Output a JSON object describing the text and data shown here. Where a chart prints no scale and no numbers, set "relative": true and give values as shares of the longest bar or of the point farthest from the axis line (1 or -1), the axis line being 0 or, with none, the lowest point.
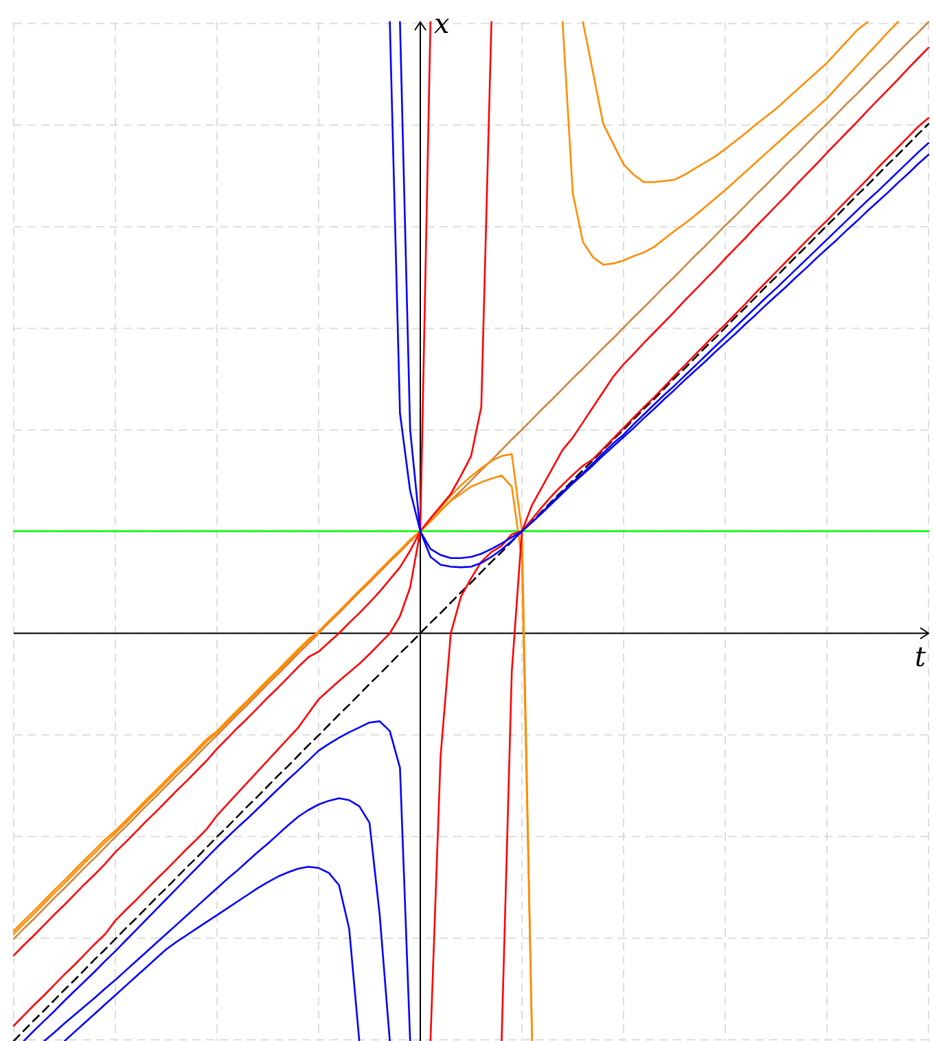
{
  "chart_data": {
    "type": "line",
    "relative": true,
    "xlabel": "t",
    "ylabel": "x",
    "grid": true,
    "categories": [
      null,
      null,
      null,
      null,
      null,
      null,
      null,
      null,
      null,
      null,
      null,
      null,
      null,
      null,
      null,
      null,
      null,
      null,
      null,
      null,
      null,
      null,
      null,
      null,
      null,
      null,
      null,
      null,
      null,
      null,
      null,
      null,
      null,
      null,
      null,
      null,
      null,
      null,
      null,
      null,
      null,
      null,
      null,
      null,
      null,
      null,
      null,
      null,
      null,
      null,
      null,
      null,
      null,
      null,
      null,
      null,
      null,
      null,
      null,
      null,
      null,
      null,
      null,
      null,
      null,
      null,
      null,
      null,
      null,
      null,
      null,
      null,
      null,
      null,
      null,
      null,
      null,
      null,
      null,
      null,
      null,
      null,
      null,
      null,
      null,
      null,
      null,
      null,
      null,
      null,
      null
    ],
    "series": [
      {
        "color": "#00ff00",
        "values": [
          0.167,
          0.167,
          0.167,
          0.167,
          0.167,
          0.167,
          0.167,
          0.167,
          0.167,
          0.167,
          0.167,
          0.167,
          0.167,
          0.167,
          0.167,
          0.167,
          0.167,
          0.167,
          0.167,
          0.167,
          0.167,
          0.167,
          0.167,
          0.167,
          0.167,
          0.167,
          0.167,
          0.167,
          0.167,
          0.167,
          0.167,
          0.167,
          0.167,
          0.167,
          0.167,
          0.167,
          0.167,
          0.167,
          0.167,
          0.167,
          0.167,
          0.167,
          0.167,
          0.167,
          0.167,
          0.167,
          0.167,
          0.167,
          0.167,
          0.167,
          0.167,
          0.167,
          0.167,
          0.167,
          0.167,
          0.167,
          0.167,
          0.167,
          0.167,
          0.167,
          0.167,
          0.167,
          0.167,
          0.167,
          0.167,
          0.167,
          0.167,
          0.167,
          0.167,
          0.167,
          0.167,
          0.167,
          0.167,
          0.167,
          0.167,
          0.167,
          0.167,
          0.167,
          0.167,
          0.167,
          0.167,
          0.167,
          0.167,
          0.167,
          0.167,
          0.167,
          0.167,
          0.167,
          0.167,
          0.167,
          0.167
        ]
      },
      {
        "color": "#000000",
        "line_style": "dashed",
        "values": [
          -0.667,
          -0.65,
          -0.633,
          -0.617,
          -0.6,
          -0.583,
          -0.567,
          -0.55,
          -0.533,
          -0.517,
          -0.5,
          -0.483,
          -0.467,
          -0.45,
          -0.433,
          -0.417,
          -0.4,
          -0.383,
          -0.367,
          -0.35,
          -0.333,
          -0.317,
          -0.3,
          -0.283,
          -0.267,
          -0.25,
          -0.233,
          -0.217,
          -0.2,
          -0.183,
          -0.167,
          -0.15,
          -0.133,
          -0.117,
          -0.1,
          -0.083,
          -0.067,
          -0.05,
          -0.033,
          -0.017,
          0,
          0.017,
          0.033,
          0.05,
          0.067,
          0.083,
          0.1,
          0.117,
          0.133,
          0.15,
          0.167,
          0.183,
          0.2,
          0.217,
          0.233,
          0.25,
          0.267,
          0.283,
          0.3,
          0.317,
          0.333,
          0.35,
          0.367,
          0.383,
          0.4,
          0.417,
          0.433,
          0.45,
          0.467,
          0.483,
          0.5,
          0.517,
          0.533,
          0.55,
          0.567,
          0.583,
          0.6,
          0.617,
          0.633,
          0.65,
          0.667,
          0.683,
          0.7,
          0.717,
          0.733,
          0.75,
          0.767,
          0.783,
          0.8,
          0.817,
          0.833
        ]
      },
      {
        "color": "#cd853f",
        "values": [
          -0.5,
          -0.483,
          -0.467,
          -0.45,
          -0.433,
          -0.417,
          -0.4,
          -0.383,
          -0.367,
          -0.35,
          -0.333,
          -0.317,
          -0.3,
          -0.283,
          -0.267,
          -0.25,
          -0.233,
          -0.217,
          -0.2,
          -0.183,
          -0.167,
          -0.15,
          -0.133,
          -0.117,
          -0.1,
          -0.083,
          -0.067,
          -0.05,
          -0.033,
          -0.017,
          0,
          0.017,
          0.033,
          0.05,
          0.067,
          0.083,
          0.1,
          0.117,
          0.133,
          0.15,
          0.167,
          0.183,
          0.2,
          0.217,
          0.233,
          0.25,
          0.267,
          0.283,
          0.3,
          0.317,
          0.333,
          0.35,
          0.367,
          0.383,
          0.4,
          0.417,
          0.433,
          0.45,
          0.467,
          0.483,
          0.5,
          0.517,
          0.533,
          0.55,
          0.567,
          0.583,
          0.6,
          0.617,
          0.633,
          0.65,
          0.667,
          0.683,
          0.7,
          0.717,
          0.733,
          0.75,
          0.767,
          0.783,
          0.8,
          0.817,
          0.833,
          0.85,
          0.867,
          0.883,
          0.9,
          0.917,
          0.933,
          0.95,
          0.967,
          0.983,
          1
        ]
      },
      {
        "color": "#ff8c00",
        "values": [
          -0.487,
          -0.47,
          -0.454,
          -0.437,
          -0.42,
          -0.404,
          -0.387,
          -0.37,
          -0.354,
          -0.337,
          -0.323,
          -0.307,
          -0.29,
          -0.273,
          -0.257,
          -0.24,
          -0.223,
          -0.207,
          -0.19,
          -0.173,
          -0.16,
          -0.143,
          -0.126,
          -0.11,
          -0.093,
          -0.076,
          -0.06,
          -0.043,
          -0.026,
          -0.01,
          0.003,
          0.02,
          0.036,
          0.053,
          0.07,
          0.086,
          0.103,
          0.12,
          0.136,
          0.153,
          0.167,
          0.187,
          0.205,
          0.225,
          0.242,
          0.257,
          0.27,
          0.282,
          0.29,
          0.293,
          0.167,
          -0.667,
          null,
          null,
          null,
          null,
          null,
          null,
          null,
          null,
          null,
          null,
          null,
          null,
          null,
          null,
          null,
          null,
          null,
          null,
          null,
          null,
          null,
          null,
          null,
          null,
          null,
          null,
          null,
          null,
          null,
          null,
          null,
          null,
          null,
          null,
          null,
          null,
          null,
          null,
          null
        ]
      },
      {
        "color": "#ff8c00",
        "values": [
          -0.492,
          -0.475,
          -0.459,
          -0.442,
          -0.425,
          -0.409,
          -0.392,
          -0.375,
          -0.359,
          -0.342,
          -0.327,
          -0.311,
          -0.294,
          -0.277,
          -0.261,
          -0.244,
          -0.227,
          -0.211,
          -0.194,
          -0.177,
          -0.163,
          -0.146,
          -0.129,
          -0.113,
          -0.096,
          -0.079,
          -0.063,
          -0.046,
          -0.029,
          -0.013,
          0.002,
          0.019,
          0.035,
          0.052,
          0.069,
          0.085,
          0.102,
          0.119,
          0.135,
          0.152,
          0.167,
          0.183,
          0.2,
          0.217,
          0.228,
          0.24,
          0.247,
          0.253,
          0.258,
          0.24,
          0.12,
          -0.667,
          null,
          null,
          null,
          null,
          null,
          null,
          null,
          null,
          null,
          null,
          null,
          null,
          null,
          null,
          null,
          null,
          null,
          null,
          null,
          null,
          null,
          null,
          null,
          null,
          null,
          null,
          null,
          null,
          null,
          null,
          null,
          null,
          null,
          null,
          null,
          null,
          null,
          null,
          null
        ]
      },
      {
        "color": "#ff8c00",
        "values": [
          null,
          null,
          null,
          null,
          null,
          null,
          null,
          null,
          null,
          null,
          null,
          null,
          null,
          null,
          null,
          null,
          null,
          null,
          null,
          null,
          null,
          null,
          null,
          null,
          null,
          null,
          null,
          null,
          null,
          null,
          null,
          null,
          null,
          null,
          null,
          null,
          null,
          null,
          null,
          null,
          null,
          null,
          null,
          null,
          null,
          null,
          null,
          null,
          null,
          null,
          null,
          null,
          null,
          null,
          null,
          null,
          1,
          0.917,
          0.833,
          0.8,
          0.767,
          0.75,
          0.738,
          0.738,
          0.74,
          0.742,
          0.75,
          0.76,
          0.77,
          0.78,
          0.792,
          0.805,
          0.818,
          0.832,
          0.845,
          0.858,
          0.873,
          0.888,
          0.903,
          0.918,
          0.933,
          0.951,
          0.969,
          0.987,
          1,
          null,
          null,
          null,
          null,
          null,
          null
        ]
      },
      {
        "color": "#ff8c00",
        "values": [
          null,
          null,
          null,
          null,
          null,
          null,
          null,
          null,
          null,
          null,
          null,
          null,
          null,
          null,
          null,
          null,
          null,
          null,
          null,
          null,
          null,
          null,
          null,
          null,
          null,
          null,
          null,
          null,
          null,
          null,
          null,
          null,
          null,
          null,
          null,
          null,
          null,
          null,
          null,
          null,
          null,
          null,
          null,
          null,
          null,
          null,
          null,
          null,
          null,
          null,
          null,
          null,
          null,
          null,
          1,
          0.72,
          0.64,
          0.615,
          0.603,
          0.605,
          0.61,
          0.617,
          0.623,
          0.632,
          0.645,
          0.658,
          0.67,
          0.683,
          0.697,
          0.711,
          0.725,
          0.74,
          0.755,
          0.77,
          0.785,
          0.8,
          0.815,
          0.83,
          0.845,
          0.86,
          0.875,
          0.893,
          0.911,
          0.929,
          0.947,
          0.965,
          0.983,
          1,
          null,
          null,
          null
        ]
      },
      {
        "color": "#ff0000",
        "values": [
          -0.527,
          -0.51,
          -0.494,
          -0.477,
          -0.46,
          -0.444,
          -0.427,
          -0.41,
          -0.394,
          -0.377,
          -0.358,
          -0.342,
          -0.325,
          -0.308,
          -0.292,
          -0.275,
          -0.258,
          -0.242,
          -0.225,
          -0.208,
          -0.189,
          -0.172,
          -0.155,
          -0.139,
          -0.122,
          -0.105,
          -0.089,
          -0.072,
          -0.055,
          -0.039,
          -0.03,
          -0.015,
          0,
          0.017,
          0.033,
          0.05,
          0.068,
          0.088,
          0.108,
          0.135,
          0.167,
          0.188,
          0.208,
          0.228,
          0.258,
          0.29,
          0.37,
          1,
          null,
          null,
          null,
          null,
          null,
          null,
          null,
          null,
          null,
          null,
          null,
          null,
          null,
          null,
          null,
          null,
          null,
          null,
          null,
          null,
          null,
          null,
          null,
          null,
          null,
          null,
          null,
          null,
          null,
          null,
          null,
          null,
          null,
          null,
          null,
          null,
          null,
          null,
          null,
          null,
          null,
          null,
          null
        ]
      },
      {
        "color": "#ff0000",
        "values": [
          -0.642,
          -0.625,
          -0.608,
          -0.592,
          -0.575,
          -0.558,
          -0.542,
          -0.525,
          -0.508,
          -0.492,
          -0.47,
          -0.453,
          -0.437,
          -0.42,
          -0.403,
          -0.387,
          -0.37,
          -0.353,
          -0.337,
          -0.32,
          -0.298,
          -0.28,
          -0.262,
          -0.244,
          -0.226,
          -0.208,
          -0.19,
          -0.172,
          -0.154,
          -0.131,
          -0.108,
          -0.093,
          -0.078,
          -0.064,
          -0.05,
          -0.034,
          -0.017,
          0,
          0.028,
          0.075,
          0.167,
          1,
          null,
          null,
          null,
          null,
          null,
          null,
          null,
          null,
          null,
          null,
          null,
          null,
          null,
          null,
          null,
          null,
          null,
          null,
          null,
          null,
          null,
          null,
          null,
          null,
          null,
          null,
          null,
          null,
          null,
          null,
          null,
          null,
          null,
          null,
          null,
          null,
          null,
          null,
          null,
          null,
          null,
          null,
          null,
          null,
          null,
          null,
          null,
          null,
          null
        ]
      },
      {
        "color": "#ff0000",
        "values": [
          null,
          null,
          null,
          null,
          null,
          null,
          null,
          null,
          null,
          null,
          null,
          null,
          null,
          null,
          null,
          null,
          null,
          null,
          null,
          null,
          null,
          null,
          null,
          null,
          null,
          null,
          null,
          null,
          null,
          null,
          null,
          null,
          null,
          null,
          null,
          null,
          null,
          null,
          null,
          null,
          null,
          -0.667,
          -0.2,
          0,
          0.06,
          0.09,
          0.117,
          0.133,
          0.143,
          0.162,
          0.167,
          0.21,
          0.24,
          0.27,
          0.3,
          0.32,
          0.345,
          0.37,
          0.395,
          0.42,
          0.44,
          0.457,
          0.475,
          0.492,
          0.509,
          0.526,
          0.544,
          0.561,
          0.578,
          0.595,
          0.613,
          0.63,
          0.647,
          0.665,
          0.682,
          0.699,
          0.716,
          0.734,
          0.751,
          0.768,
          0.786,
          0.803,
          0.82,
          0.837,
          0.855,
          0.872,
          0.889,
          0.906,
          0.924,
          0.941,
          0.958
        ]
      },
      {
        "color": "#ff0000",
        "values": [
          null,
          null,
          null,
          null,
          null,
          null,
          null,
          null,
          null,
          null,
          null,
          null,
          null,
          null,
          null,
          null,
          null,
          null,
          null,
          null,
          null,
          null,
          null,
          null,
          null,
          null,
          null,
          null,
          null,
          null,
          null,
          null,
          null,
          null,
          null,
          null,
          null,
          null,
          null,
          null,
          null,
          null,
          null,
          null,
          null,
          null,
          null,
          null,
          -0.667,
          -0.063,
          0.167,
          0.187,
          0.207,
          0.226,
          0.243,
          0.259,
          0.274,
          0.285,
          0.302,
          0.319,
          0.336,
          0.353,
          0.37,
          0.386,
          0.403,
          0.421,
          0.438,
          0.455,
          0.472,
          0.489,
          0.505,
          0.522,
          0.539,
          0.557,
          0.574,
          0.591,
          0.608,
          0.625,
          0.642,
          0.659,
          0.675,
          0.692,
          0.709,
          0.726,
          0.743,
          0.761,
          0.778,
          0.795,
          0.812,
          0.829,
          0.843
        ]
      },
      {
        "color": "#0000ff",
        "values": [
          null,
          null,
          null,
          null,
          null,
          null,
          null,
          null,
          null,
          null,
          null,
          null,
          null,
          null,
          null,
          null,
          null,
          null,
          null,
          null,
          null,
          null,
          null,
          null,
          null,
          null,
          null,
          null,
          null,
          null,
          null,
          null,
          null,
          null,
          null,
          null,
          null,
          1,
          0.36,
          0.233,
          0.167,
          0.125,
          0.112,
          0.109,
          0.108,
          0.109,
          0.115,
          0.125,
          0.137,
          0.151,
          0.167,
          0.182,
          0.197,
          0.213,
          0.229,
          0.245,
          0.26,
          0.275,
          0.291,
          0.306,
          0.321,
          0.336,
          0.352,
          0.367,
          0.383,
          0.398,
          0.414,
          0.429,
          0.444,
          0.46,
          0.475,
          0.49,
          0.506,
          0.521,
          0.537,
          0.552,
          0.567,
          0.583,
          0.598,
          0.614,
          0.629,
          0.644,
          0.66,
          0.675,
          0.691,
          0.706,
          0.721,
          0.737,
          0.752,
          0.768,
          0.783
        ]
      },
      {
        "color": "#0000ff",
        "values": [
          null,
          null,
          null,
          null,
          null,
          null,
          null,
          null,
          null,
          null,
          null,
          null,
          null,
          null,
          null,
          null,
          null,
          null,
          null,
          null,
          null,
          null,
          null,
          null,
          null,
          null,
          null,
          null,
          null,
          null,
          null,
          null,
          null,
          null,
          null,
          null,
          null,
          null,
          1,
          0.333,
          0.167,
          0.138,
          0.128,
          0.123,
          0.123,
          0.125,
          0.13,
          0.138,
          0.147,
          0.157,
          0.167,
          0.182,
          0.198,
          0.215,
          0.231,
          0.247,
          0.262,
          0.278,
          0.295,
          0.311,
          0.325,
          0.342,
          0.358,
          0.374,
          0.39,
          0.405,
          0.421,
          0.437,
          0.453,
          0.469,
          0.485,
          0.501,
          0.517,
          0.533,
          0.549,
          0.564,
          0.58,
          0.596,
          0.612,
          0.628,
          0.644,
          0.66,
          0.676,
          0.692,
          0.708,
          0.723,
          0.739,
          0.755,
          0.771,
          0.787,
          0.802
        ]
      },
      {
        "color": "#0000ff",
        "values": [
          null,
          -0.667,
          -0.65,
          -0.634,
          -0.618,
          -0.601,
          -0.585,
          -0.569,
          -0.553,
          -0.536,
          -0.52,
          -0.503,
          -0.486,
          -0.469,
          -0.452,
          -0.435,
          -0.418,
          -0.401,
          -0.384,
          -0.367,
          -0.35,
          -0.334,
          -0.318,
          -0.303,
          -0.287,
          -0.271,
          -0.255,
          -0.239,
          -0.224,
          -0.208,
          -0.192,
          -0.181,
          -0.171,
          -0.162,
          -0.154,
          -0.146,
          -0.144,
          -0.16,
          -0.22,
          -0.667,
          null,
          null,
          null,
          null,
          null,
          null,
          null,
          null,
          null,
          null,
          null,
          null,
          null,
          null,
          null,
          null,
          null,
          null,
          null,
          null,
          null,
          null,
          null,
          null,
          null,
          null,
          null,
          null,
          null,
          null,
          null,
          null,
          null,
          null,
          null,
          null,
          null,
          null,
          null,
          null,
          null,
          null,
          null,
          null,
          null,
          null,
          null,
          null,
          null,
          null,
          null
        ]
      },
      {
        "color": "#0000ff",
        "values": [
          null,
          null,
          null,
          -0.667,
          -0.653,
          -0.638,
          -0.624,
          -0.61,
          -0.596,
          -0.581,
          -0.567,
          -0.552,
          -0.537,
          -0.522,
          -0.507,
          -0.492,
          -0.477,
          -0.462,
          -0.447,
          -0.432,
          -0.417,
          -0.402,
          -0.388,
          -0.373,
          -0.358,
          -0.344,
          -0.329,
          -0.314,
          -0.3,
          -0.289,
          -0.28,
          -0.274,
          -0.27,
          -0.273,
          -0.283,
          -0.31,
          -0.46,
          -0.667,
          null,
          null,
          null,
          null,
          null,
          null,
          null,
          null,
          null,
          null,
          null,
          null,
          null,
          null,
          null,
          null,
          null,
          null,
          null,
          null,
          null,
          null,
          null,
          null,
          null,
          null,
          null,
          null,
          null,
          null,
          null,
          null,
          null,
          null,
          null,
          null,
          null,
          null,
          null,
          null,
          null,
          null,
          null,
          null,
          null,
          null,
          null,
          null,
          null,
          null,
          null,
          null,
          null
        ]
      },
      {
        "color": "#0000ff",
        "values": [
          null,
          null,
          null,
          null,
          null,
          -0.667,
          -0.652,
          -0.637,
          -0.622,
          -0.607,
          -0.592,
          -0.577,
          -0.562,
          -0.547,
          -0.532,
          -0.517,
          -0.505,
          -0.494,
          -0.483,
          -0.472,
          -0.461,
          -0.45,
          -0.439,
          -0.428,
          -0.417,
          -0.407,
          -0.398,
          -0.391,
          -0.385,
          -0.382,
          -0.384,
          -0.392,
          -0.412,
          -0.483,
          -0.667,
          null,
          null,
          null,
          null,
          null,
          null,
          null,
          null,
          null,
          null,
          null,
          null,
          null,
          null,
          null,
          null,
          null,
          null,
          null,
          null,
          null,
          null,
          null,
          null,
          null,
          null,
          null,
          null,
          null,
          null,
          null,
          null,
          null,
          null,
          null,
          null,
          null,
          null,
          null,
          null,
          null,
          null,
          null,
          null,
          null,
          null,
          null,
          null,
          null,
          null,
          null,
          null,
          null,
          null,
          null,
          null
        ]
      }
    ]
  }
}
